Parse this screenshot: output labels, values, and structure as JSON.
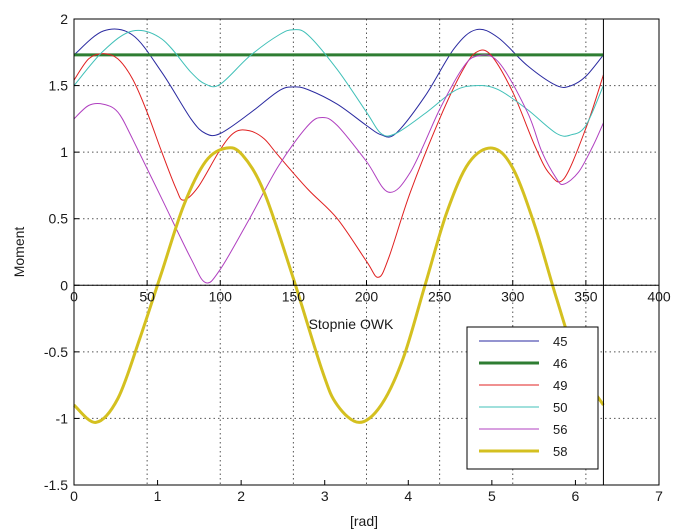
{
  "chart_data": {
    "type": "line",
    "title": "",
    "xlabel": "Stopnie OWK",
    "ylabel": "Moment",
    "xlabel_bottom": "[rad]",
    "xlim": [
      0,
      400
    ],
    "ylim": [
      -1.5,
      2
    ],
    "x_ticks": [
      "0",
      "50",
      "100",
      "150",
      "200",
      "250",
      "300",
      "350",
      "400"
    ],
    "y_ticks": [
      "-1.5",
      "-1",
      "-0.5",
      "0",
      "0.5",
      "1",
      "1.5",
      "2"
    ],
    "secondary_x_ticks": [
      "0",
      "1",
      "2",
      "3",
      "4",
      "5",
      "6",
      "7"
    ],
    "grid": true,
    "legend_position": "lower-right",
    "series": [
      {
        "name": "45",
        "color": "#2a2aa0",
        "width": 1,
        "x": [
          0,
          20,
          40,
          60,
          80,
          90,
          100,
          120,
          140,
          150,
          160,
          180,
          200,
          210,
          220,
          240,
          260,
          275,
          290,
          310,
          330,
          340,
          350,
          362
        ],
        "y": [
          1.73,
          1.91,
          1.88,
          1.6,
          1.25,
          1.14,
          1.14,
          1.29,
          1.46,
          1.49,
          1.47,
          1.36,
          1.2,
          1.13,
          1.14,
          1.42,
          1.78,
          1.92,
          1.86,
          1.65,
          1.5,
          1.5,
          1.57,
          1.73
        ]
      },
      {
        "name": "46",
        "color": "#2e7d32",
        "width": 3,
        "x": [
          0,
          362
        ],
        "y": [
          1.73,
          1.73
        ]
      },
      {
        "name": "49",
        "color": "#e02020",
        "width": 1,
        "x": [
          0,
          10,
          20,
          30,
          40,
          50,
          60,
          70,
          75,
          85,
          100,
          110,
          120,
          130,
          140,
          160,
          180,
          200,
          208,
          215,
          230,
          250,
          265,
          275,
          285,
          300,
          315,
          325,
          335,
          350,
          362
        ],
        "y": [
          1.54,
          1.7,
          1.74,
          1.7,
          1.55,
          1.3,
          1.0,
          0.72,
          0.64,
          0.74,
          1.02,
          1.15,
          1.16,
          1.1,
          0.97,
          0.72,
          0.5,
          0.18,
          0.06,
          0.2,
          0.7,
          1.25,
          1.6,
          1.75,
          1.73,
          1.45,
          1.05,
          0.84,
          0.8,
          1.18,
          1.58
        ]
      },
      {
        "name": "50",
        "color": "#40c0b8",
        "width": 1,
        "x": [
          0,
          20,
          40,
          60,
          80,
          90,
          100,
          120,
          140,
          150,
          160,
          180,
          200,
          210,
          220,
          240,
          260,
          275,
          290,
          310,
          330,
          340,
          350,
          362
        ],
        "y": [
          1.5,
          1.76,
          1.91,
          1.85,
          1.6,
          1.51,
          1.51,
          1.72,
          1.88,
          1.92,
          1.88,
          1.62,
          1.3,
          1.14,
          1.14,
          1.29,
          1.46,
          1.5,
          1.47,
          1.32,
          1.14,
          1.13,
          1.2,
          1.5
        ]
      },
      {
        "name": "56",
        "color": "#b040c0",
        "width": 1,
        "x": [
          0,
          10,
          20,
          30,
          40,
          60,
          80,
          90,
          100,
          120,
          140,
          160,
          170,
          180,
          200,
          215,
          230,
          250,
          265,
          275,
          290,
          310,
          320,
          330,
          335,
          345,
          355,
          362
        ],
        "y": [
          1.25,
          1.35,
          1.36,
          1.3,
          1.1,
          0.65,
          0.2,
          0.02,
          0.12,
          0.5,
          0.9,
          1.2,
          1.26,
          1.2,
          0.93,
          0.7,
          0.85,
          1.32,
          1.62,
          1.72,
          1.68,
          1.3,
          1.0,
          0.8,
          0.76,
          0.85,
          1.05,
          1.22
        ]
      },
      {
        "name": "58",
        "color": "#d4c020",
        "width": 3,
        "x": [
          0,
          15,
          30,
          45,
          60,
          75,
          90,
          104,
          115,
          130,
          150,
          170,
          180,
          195,
          210,
          225,
          240,
          255,
          270,
          286,
          300,
          315,
          330,
          345,
          362
        ],
        "y": [
          -0.9,
          -1.03,
          -0.85,
          -0.4,
          0.1,
          0.6,
          0.93,
          1.03,
          0.98,
          0.7,
          0.05,
          -0.65,
          -0.9,
          -1.03,
          -0.9,
          -0.55,
          0.0,
          0.55,
          0.92,
          1.03,
          0.88,
          0.45,
          -0.1,
          -0.6,
          -0.9
        ]
      }
    ]
  }
}
